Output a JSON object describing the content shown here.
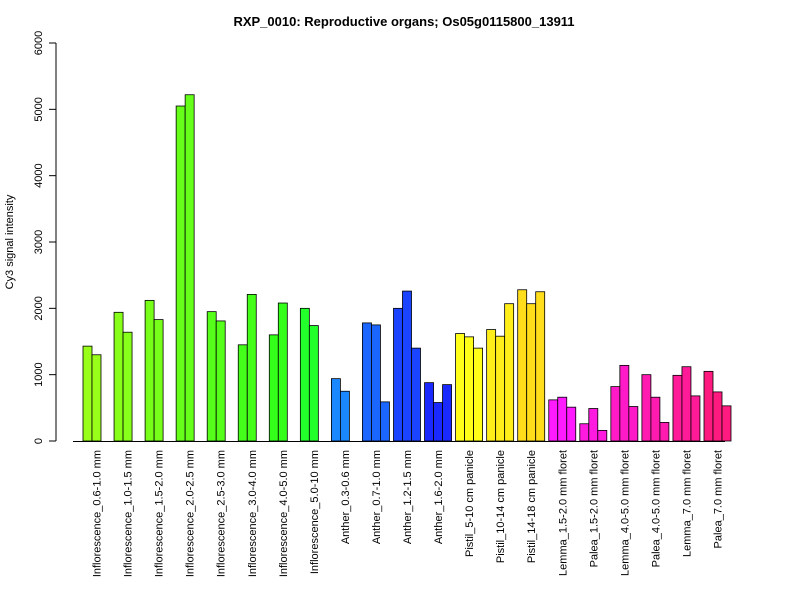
{
  "chart_data": {
    "type": "bar",
    "title": "RXP_0010: Reproductive organs; Os05g0115800_13911",
    "xlabel": "",
    "ylabel": "Cy3 signal intensity",
    "ylim": [
      0,
      6000
    ],
    "yticks": [
      0,
      1000,
      2000,
      3000,
      4000,
      5000,
      6000
    ],
    "grid": false,
    "legend": "none",
    "categories": [
      {
        "label": "Inflorescence_0.6-1.0 mm",
        "color": "#99ff1a",
        "values": [
          1430,
          1300
        ]
      },
      {
        "label": "Inflorescence_1.0-1.5 mm",
        "color": "#88ff1a",
        "values": [
          1940,
          1640
        ]
      },
      {
        "label": "Inflorescence_1.5-2.0 mm",
        "color": "#77ff1a",
        "values": [
          2120,
          1830
        ]
      },
      {
        "label": "Inflorescence_2.0-2.5 mm",
        "color": "#66ff1a",
        "values": [
          5050,
          5220
        ]
      },
      {
        "label": "Inflorescence_2.5-3.0 mm",
        "color": "#55ff1a",
        "values": [
          1950,
          1810
        ]
      },
      {
        "label": "Inflorescence_3.0-4.0 mm",
        "color": "#44ff1a",
        "values": [
          1450,
          2210
        ]
      },
      {
        "label": "Inflorescence_4.0-5.0 mm",
        "color": "#33ff1a",
        "values": [
          1600,
          2080
        ]
      },
      {
        "label": "Inflorescence_5.0-10 mm",
        "color": "#22ff2a",
        "values": [
          2000,
          1740
        ]
      },
      {
        "label": "Anther_0.3-0.6 mm",
        "color": "#1a88ff",
        "values": [
          940,
          750
        ]
      },
      {
        "label": "Anther_0.7-1.0 mm",
        "color": "#1a66ff",
        "values": [
          1780,
          1750,
          590
        ]
      },
      {
        "label": "Anther_1.2-1.5 mm",
        "color": "#1a44ff",
        "values": [
          2000,
          2260,
          1400
        ]
      },
      {
        "label": "Anther_1.6-2.0 mm",
        "color": "#1a2aff",
        "values": [
          880,
          580,
          850
        ]
      },
      {
        "label": "Pistil_5-10 cm panicle",
        "color": "#ffff1a",
        "values": [
          1620,
          1570,
          1400
        ]
      },
      {
        "label": "Pistil_10-14 cm panicle",
        "color": "#ffee1a",
        "values": [
          1680,
          1580,
          2070
        ]
      },
      {
        "label": "Pistil_14-18 cm panicle",
        "color": "#ffdd1a",
        "values": [
          2280,
          2070,
          2250
        ]
      },
      {
        "label": "Lemma_1.5-2.0 mm floret",
        "color": "#ff1aff",
        "values": [
          620,
          660,
          510
        ]
      },
      {
        "label": "Palea_1.5-2.0 mm floret",
        "color": "#ff1ae0",
        "values": [
          260,
          490,
          160
        ]
      },
      {
        "label": "Lemma_4.0-5.0 mm floret",
        "color": "#ff1ac8",
        "values": [
          820,
          1140,
          520
        ]
      },
      {
        "label": "Palea_4.0-5.0 mm floret",
        "color": "#ff1ab0",
        "values": [
          1000,
          660,
          280
        ]
      },
      {
        "label": "Lemma_7.0 mm floret",
        "color": "#ff1a98",
        "values": [
          990,
          1120,
          680
        ]
      },
      {
        "label": "Palea_7.0 mm floret",
        "color": "#ff1a80",
        "values": [
          1050,
          740,
          530
        ]
      }
    ]
  }
}
